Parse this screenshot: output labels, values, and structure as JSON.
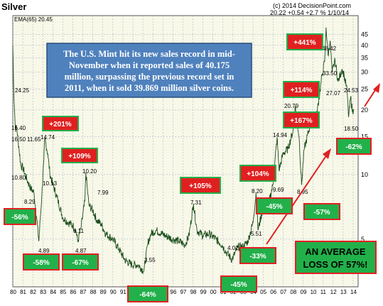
{
  "chart_data": {
    "type": "line",
    "title": "Silver",
    "source": "(c) 2014 DecisionPoint.com",
    "last_readout": "20.22 +0.54 +2.7 % 1/10/14",
    "ema_label": "EMA(65) 20.45",
    "scale": "log",
    "ylim": [
      3,
      55
    ],
    "y_ticks": [
      5,
      10,
      15,
      20,
      25,
      30,
      35,
      40,
      45
    ],
    "y_tick_labels": [
      "5",
      "10",
      "15",
      "20",
      "25",
      "30",
      "35",
      "40",
      "45"
    ],
    "xlim": [
      1980,
      2014.5
    ],
    "x_tick_labels": [
      "80",
      "81",
      "82",
      "83",
      "84",
      "85",
      "86",
      "87",
      "88",
      "89",
      "90",
      "91",
      "92",
      "93",
      "94",
      "95",
      "96",
      "97",
      "98",
      "99",
      "00",
      "01",
      "02",
      "03",
      "04",
      "05",
      "06",
      "07",
      "08",
      "09",
      "10",
      "11",
      "12",
      "13",
      "14"
    ],
    "series": [
      {
        "color": "#1a4d1a",
        "points": [
          [
            1980.0,
            40.0
          ],
          [
            1980.1,
            24.25
          ],
          [
            1980.25,
            16.4
          ],
          [
            1980.4,
            16.5
          ],
          [
            1980.6,
            13.5
          ],
          [
            1980.8,
            11.0
          ],
          [
            1981.0,
            10.8
          ],
          [
            1981.4,
            9.5
          ],
          [
            1981.8,
            8.6
          ],
          [
            1982.1,
            8.29
          ],
          [
            1982.4,
            6.2
          ],
          [
            1982.6,
            4.89
          ],
          [
            1982.9,
            8.0
          ],
          [
            1983.1,
            11.65
          ],
          [
            1983.2,
            14.74
          ],
          [
            1983.5,
            12.5
          ],
          [
            1983.7,
            10.13
          ],
          [
            1984.0,
            9.0
          ],
          [
            1984.5,
            7.6
          ],
          [
            1985.0,
            6.3
          ],
          [
            1985.5,
            6.0
          ],
          [
            1986.0,
            5.8
          ],
          [
            1986.3,
            5.5
          ],
          [
            1986.5,
            4.87
          ],
          [
            1986.8,
            5.6
          ],
          [
            1987.2,
            7.5
          ],
          [
            1987.3,
            10.2
          ],
          [
            1987.6,
            7.2
          ],
          [
            1988.0,
            6.8
          ],
          [
            1988.4,
            6.11
          ],
          [
            1988.8,
            5.9
          ],
          [
            1989.3,
            5.3
          ],
          [
            1990.0,
            5.0
          ],
          [
            1990.6,
            4.5
          ],
          [
            1991.2,
            4.0
          ],
          [
            1991.9,
            3.8
          ],
          [
            1992.5,
            3.8
          ],
          [
            1993.1,
            3.55
          ],
          [
            1993.5,
            4.8
          ],
          [
            1993.8,
            5.3
          ],
          [
            1994.3,
            5.5
          ],
          [
            1995.2,
            5.2
          ],
          [
            1996.0,
            5.0
          ],
          [
            1996.6,
            4.9
          ],
          [
            1997.2,
            4.7
          ],
          [
            1997.6,
            5.2
          ],
          [
            1998.05,
            7.31
          ],
          [
            1998.4,
            5.5
          ],
          [
            1999.0,
            5.2
          ],
          [
            1999.6,
            5.3
          ],
          [
            2000.3,
            5.0
          ],
          [
            2000.9,
            4.7
          ],
          [
            2001.4,
            4.3
          ],
          [
            2001.9,
            4.02
          ],
          [
            2002.5,
            4.6
          ],
          [
            2003.0,
            4.6
          ],
          [
            2003.5,
            4.9
          ],
          [
            2004.0,
            6.0
          ],
          [
            2004.3,
            8.2
          ],
          [
            2004.5,
            5.51
          ],
          [
            2005.0,
            7.0
          ],
          [
            2005.6,
            7.5
          ],
          [
            2006.0,
            9.0
          ],
          [
            2006.4,
            14.94
          ],
          [
            2006.6,
            10.5
          ],
          [
            2007.0,
            12.5
          ],
          [
            2007.5,
            13.2
          ],
          [
            2008.0,
            16.0
          ],
          [
            2008.2,
            20.79
          ],
          [
            2008.6,
            15.0
          ],
          [
            2008.85,
            8.95
          ],
          [
            2009.1,
            13.0
          ],
          [
            2009.7,
            17.0
          ],
          [
            2010.3,
            18.0
          ],
          [
            2010.9,
            29.0
          ],
          [
            2011.15,
            33.5
          ],
          [
            2011.3,
            48.42
          ],
          [
            2011.5,
            36.0
          ],
          [
            2011.7,
            42.0
          ],
          [
            2011.9,
            30.0
          ],
          [
            2012.2,
            34.0
          ],
          [
            2012.5,
            27.07
          ],
          [
            2012.9,
            31.0
          ],
          [
            2013.1,
            29.0
          ],
          [
            2013.4,
            24.53
          ],
          [
            2013.55,
            18.5
          ],
          [
            2013.75,
            23.0
          ],
          [
            2013.95,
            19.5
          ],
          [
            2014.03,
            20.22
          ]
        ]
      }
    ],
    "price_labels": [
      "24.25",
      "16.40",
      "16.50",
      "11.65",
      "14.74",
      "10.80",
      "10.13",
      "8.29",
      "4.89",
      "4.87",
      "10.20",
      "7.99",
      "6.11",
      "3.55",
      "7.31",
      "4.02",
      "8.20",
      "5.51",
      "9.69",
      "14.94",
      "20.79",
      "8.95",
      "33.50",
      "48.42",
      "27.07",
      "24.53",
      "18.50"
    ],
    "badges": [
      {
        "text": "+201%",
        "kind": "up"
      },
      {
        "text": "+109%",
        "kind": "up"
      },
      {
        "text": "-56%",
        "kind": "down"
      },
      {
        "text": "-58%",
        "kind": "down"
      },
      {
        "text": "-67%",
        "kind": "down"
      },
      {
        "text": "-64%",
        "kind": "down"
      },
      {
        "text": "+105%",
        "kind": "up"
      },
      {
        "text": "-45%",
        "kind": "down"
      },
      {
        "text": "-33%",
        "kind": "down"
      },
      {
        "text": "+104%",
        "kind": "up"
      },
      {
        "text": "-45%",
        "kind": "down"
      },
      {
        "text": "+167%",
        "kind": "up"
      },
      {
        "text": "+114%",
        "kind": "up"
      },
      {
        "text": "+441%",
        "kind": "up"
      },
      {
        "text": "-57%",
        "kind": "down"
      },
      {
        "text": "-62%",
        "kind": "down"
      }
    ],
    "annotation_lines": [
      "The U.S. Mint hit its new sales record in mid-",
      "November when it reported sales of 40.175",
      "million, surpassing the previous record set in",
      "2011, when it sold 39.869 million silver coins."
    ],
    "average_lines": [
      "AN AVERAGE",
      "LOSS OF 57%!"
    ],
    "colors": {
      "plot_bg": "#f8f8e8",
      "grid": "#9aa8c8",
      "line": "#1a4d1a",
      "up_badge_fill": "#e02020",
      "down_badge_fill": "#22b04a",
      "up_badge_border": "#22b04a",
      "down_badge_border": "#e02020",
      "note_fill": "#4f81bd",
      "avg_fill": "#22b04a",
      "arrow": "#e02020"
    }
  }
}
